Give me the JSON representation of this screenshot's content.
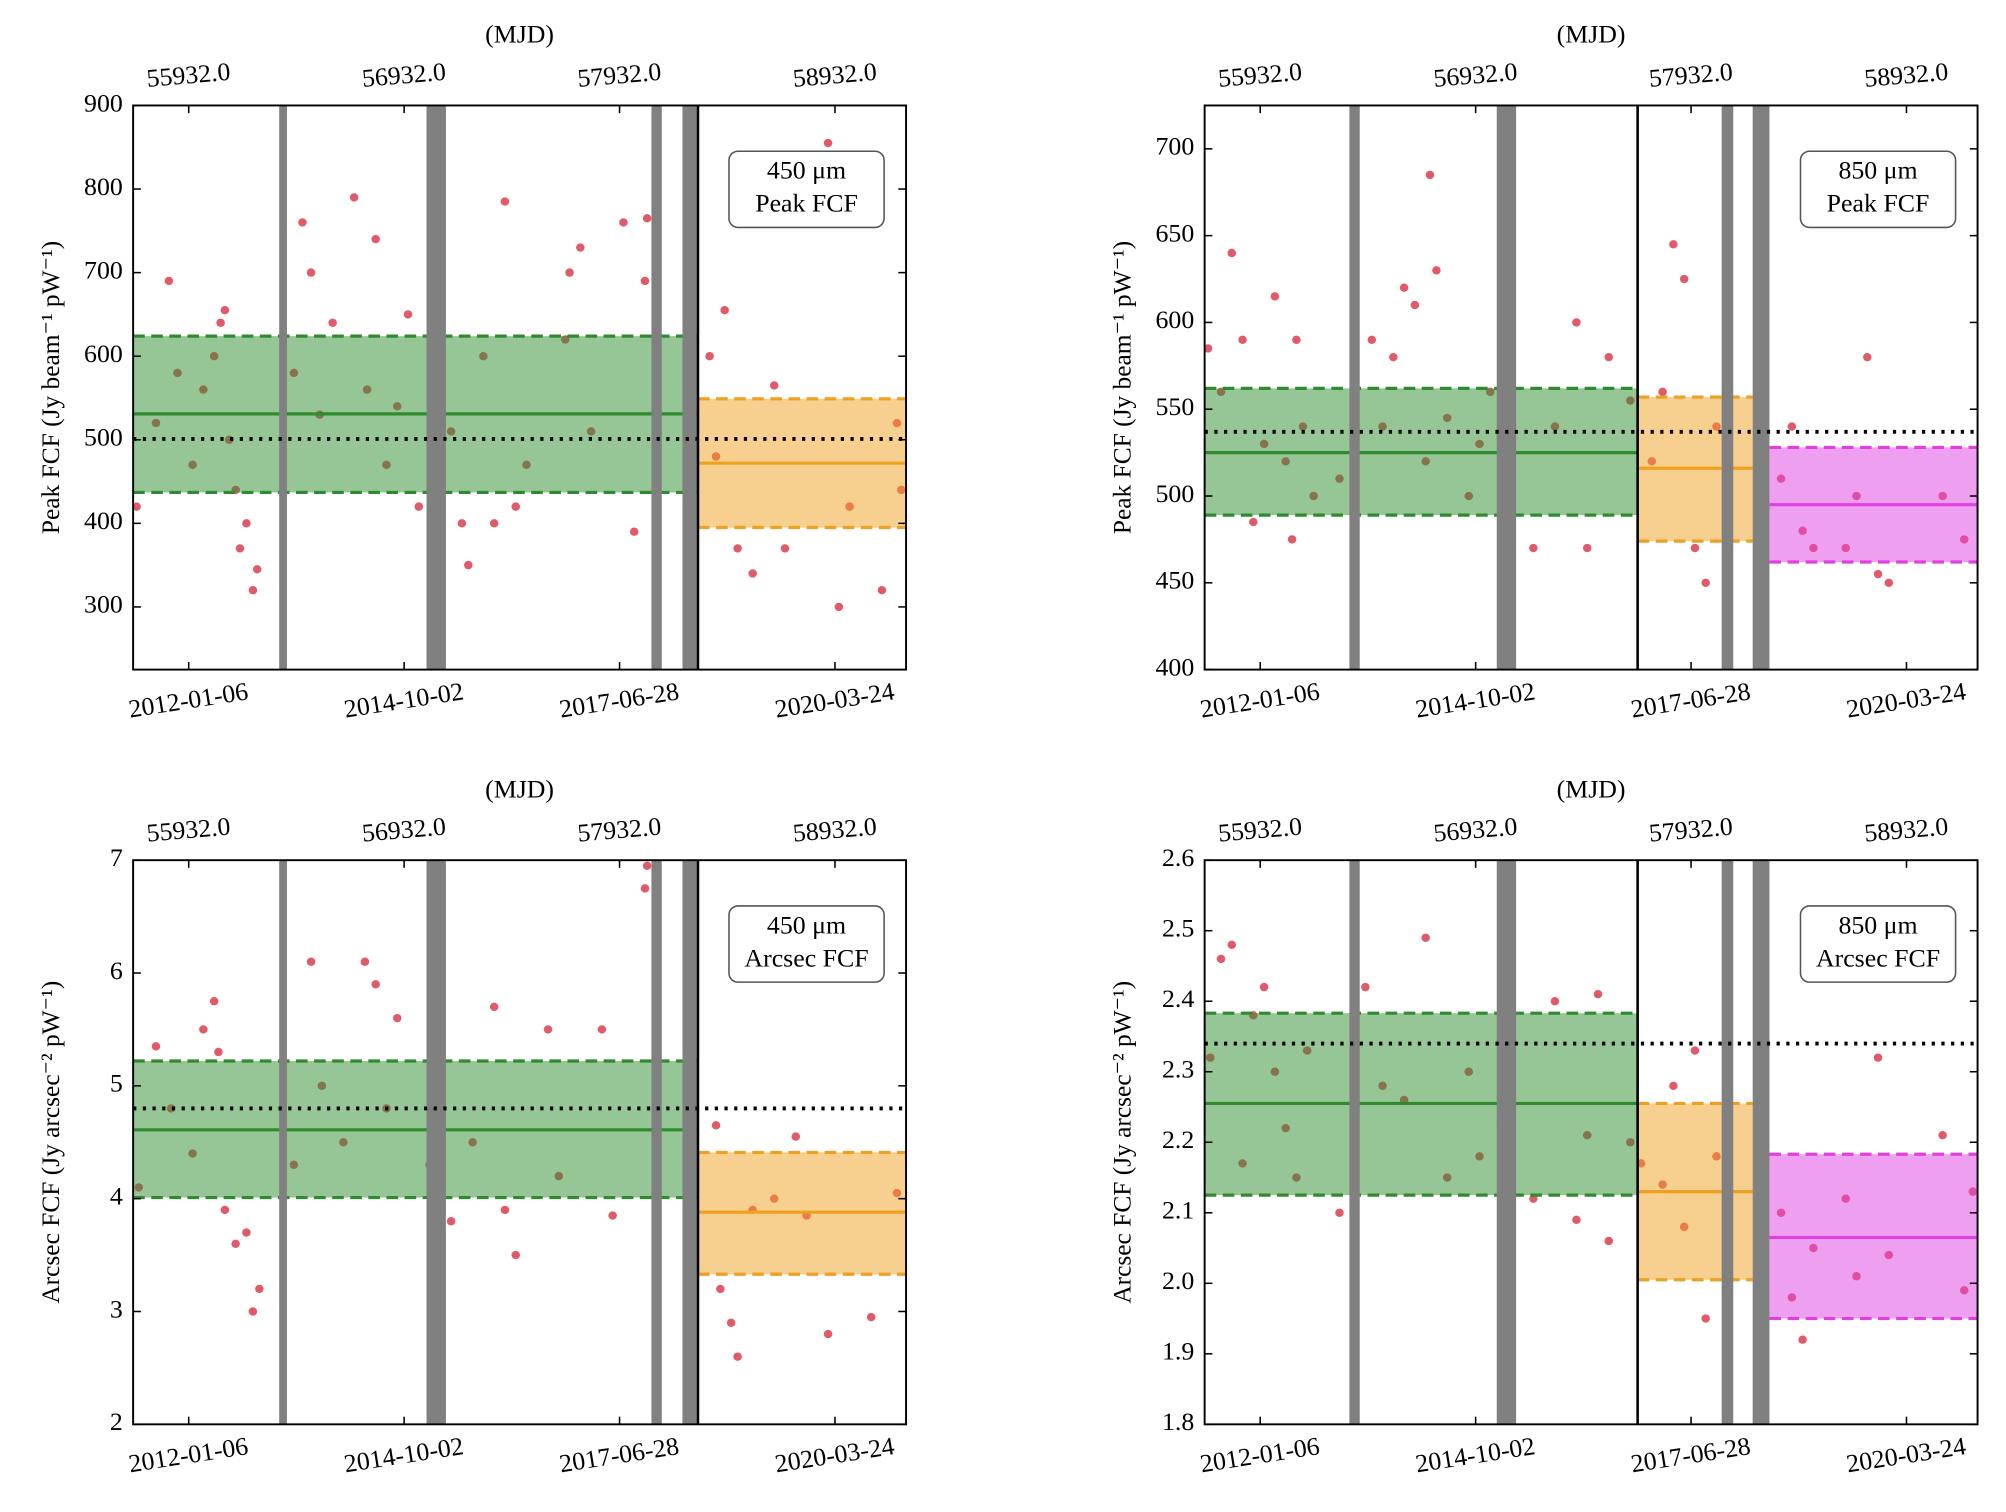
{
  "chart_data": [
    {
      "type": "scatter",
      "xlabel_top": "(MJD)",
      "ylabel": "Peak FCF (Jy beam⁻¹ pW⁻¹)",
      "annotation": [
        "450 μm",
        "Peak FCF"
      ],
      "xlim": [
        55674,
        59262
      ],
      "ylim": [
        225,
        900
      ],
      "xticks": [
        {
          "value": 55932,
          "label": "2012-01-06"
        },
        {
          "value": 56932,
          "label": "2014-10-02"
        },
        {
          "value": 57932,
          "label": "2017-06-28"
        },
        {
          "value": 58932,
          "label": "2020-03-24"
        }
      ],
      "x2ticks": [
        {
          "value": 55932,
          "label": "55932.0"
        },
        {
          "value": 56932,
          "label": "56932.0"
        },
        {
          "value": 57932,
          "label": "57932.0"
        },
        {
          "value": 58932,
          "label": "58932.0"
        }
      ],
      "yticks": [
        300,
        400,
        500,
        600,
        700,
        800,
        900
      ],
      "series": [
        {
          "color": "#e05a6a",
          "x": [
            55690,
            55780,
            55840,
            55880,
            55950,
            56000,
            56050,
            56080,
            56100,
            56120,
            56150,
            56170,
            56200,
            56230,
            56250,
            56420,
            56460,
            56500,
            56540,
            56600,
            56700,
            56760,
            56800,
            56850,
            56900,
            56950,
            57000,
            57150,
            57200,
            57230,
            57300,
            57350,
            57400,
            57450,
            57500,
            57680,
            57700,
            57750,
            57800,
            57950,
            58000,
            58050,
            58060,
            58350,
            58380,
            58420,
            58480,
            58550,
            58650,
            58700,
            58900,
            58950,
            59000,
            59150,
            59220,
            59240
          ],
          "values": [
            420,
            520,
            690,
            580,
            470,
            560,
            600,
            640,
            655,
            500,
            440,
            370,
            400,
            320,
            345,
            580,
            760,
            700,
            530,
            640,
            790,
            560,
            740,
            470,
            540,
            650,
            420,
            510,
            400,
            350,
            600,
            400,
            785,
            420,
            470,
            620,
            700,
            730,
            510,
            760,
            390,
            690,
            765,
            600,
            480,
            655,
            370,
            340,
            565,
            370,
            855,
            300,
            420,
            320,
            520,
            440
          ]
        }
      ],
      "regions": [
        {
          "color": "#2e8b2e",
          "x": [
            55674,
            58296
          ],
          "mean": 531,
          "lower": 437,
          "upper": 624
        },
        {
          "color": "#f0a020",
          "x": [
            58296,
            59262
          ],
          "mean": 472,
          "lower": 395,
          "upper": 549
        }
      ],
      "shutdowns": [
        [
          56352,
          56388
        ],
        [
          57036,
          57126
        ],
        [
          58080,
          58128
        ],
        [
          58224,
          58290
        ]
      ],
      "epoch_lines": [
        58296
      ],
      "reference_y": 501
    },
    {
      "type": "scatter",
      "xlabel_top": "(MJD)",
      "ylabel": "Peak FCF (Jy beam⁻¹ pW⁻¹)",
      "annotation": [
        "850 μm",
        "Peak FCF"
      ],
      "xlim": [
        55674,
        59262
      ],
      "ylim": [
        400,
        725
      ],
      "xticks": [
        {
          "value": 55932,
          "label": "2012-01-06"
        },
        {
          "value": 56932,
          "label": "2014-10-02"
        },
        {
          "value": 57932,
          "label": "2017-06-28"
        },
        {
          "value": 58932,
          "label": "2020-03-24"
        }
      ],
      "x2ticks": [
        {
          "value": 55932,
          "label": "55932.0"
        },
        {
          "value": 56932,
          "label": "56932.0"
        },
        {
          "value": 57932,
          "label": "57932.0"
        },
        {
          "value": 58932,
          "label": "58932.0"
        }
      ],
      "yticks": [
        400,
        450,
        500,
        550,
        600,
        650,
        700
      ],
      "series": [
        {
          "color": "#e05a6a",
          "x": [
            55690,
            55750,
            55800,
            55850,
            55900,
            55950,
            56000,
            56050,
            56080,
            56100,
            56130,
            56180,
            56300,
            56450,
            56500,
            56550,
            56600,
            56650,
            56700,
            56720,
            56750,
            56800,
            56900,
            56950,
            57000,
            57100,
            57200,
            57300,
            57400,
            57450,
            57550,
            57650,
            57750,
            57800,
            57850,
            57900,
            57950,
            58000,
            58050,
            58100,
            58350,
            58400,
            58450,
            58500,
            58650,
            58700,
            58750,
            58800,
            58850,
            59100,
            59200
          ],
          "values": [
            585,
            560,
            640,
            590,
            485,
            530,
            615,
            520,
            475,
            590,
            540,
            500,
            510,
            590,
            540,
            580,
            620,
            610,
            520,
            685,
            630,
            545,
            500,
            530,
            560,
            505,
            470,
            540,
            600,
            470,
            580,
            555,
            520,
            560,
            645,
            625,
            470,
            450,
            540,
            490,
            510,
            540,
            480,
            470,
            470,
            500,
            580,
            455,
            450,
            500,
            475
          ]
        }
      ],
      "regions": [
        {
          "color": "#2e8b2e",
          "x": [
            55674,
            57684
          ],
          "mean": 525,
          "lower": 489,
          "upper": 562
        },
        {
          "color": "#f0a020",
          "x": [
            57684,
            58218
          ],
          "mean": 516,
          "lower": 474,
          "upper": 557
        },
        {
          "color": "#e040e0",
          "x": [
            58296,
            59262
          ],
          "mean": 495,
          "lower": 462,
          "upper": 528
        }
      ],
      "shutdowns": [
        [
          56346,
          56394
        ],
        [
          57030,
          57120
        ],
        [
          58074,
          58128
        ],
        [
          58218,
          58296
        ]
      ],
      "epoch_lines": [
        57684
      ],
      "reference_y": 537
    },
    {
      "type": "scatter",
      "xlabel_top": "(MJD)",
      "ylabel": "Arcsec FCF (Jy arcsec⁻² pW⁻¹)",
      "annotation": [
        "450 μm",
        "Arcsec FCF"
      ],
      "xlim": [
        55674,
        59262
      ],
      "ylim": [
        2,
        7
      ],
      "xticks": [
        {
          "value": 55932,
          "label": "2012-01-06"
        },
        {
          "value": 56932,
          "label": "2014-10-02"
        },
        {
          "value": 57932,
          "label": "2017-06-28"
        },
        {
          "value": 58932,
          "label": "2020-03-24"
        }
      ],
      "x2ticks": [
        {
          "value": 55932,
          "label": "55932.0"
        },
        {
          "value": 56932,
          "label": "56932.0"
        },
        {
          "value": 57932,
          "label": "57932.0"
        },
        {
          "value": 58932,
          "label": "58932.0"
        }
      ],
      "yticks": [
        2,
        3,
        4,
        5,
        6,
        7
      ],
      "series": [
        {
          "color": "#e05a6a",
          "x": [
            55700,
            55780,
            55850,
            55950,
            56000,
            56050,
            56070,
            56100,
            56150,
            56200,
            56230,
            56260,
            56420,
            56500,
            56550,
            56650,
            56750,
            56800,
            56850,
            56900,
            57050,
            57100,
            57150,
            57250,
            57350,
            57400,
            57450,
            57600,
            57650,
            57850,
            57900,
            58050,
            58060,
            58100,
            58380,
            58400,
            58450,
            58480,
            58550,
            58650,
            58750,
            58800,
            58900,
            59100,
            59220
          ],
          "values": [
            4.1,
            5.35,
            4.8,
            4.4,
            5.5,
            5.75,
            5.3,
            3.9,
            3.6,
            3.7,
            3.0,
            3.2,
            4.3,
            6.1,
            5.0,
            4.5,
            6.1,
            5.9,
            4.8,
            5.6,
            4.3,
            6.1,
            3.8,
            4.5,
            5.7,
            3.9,
            3.5,
            5.5,
            4.2,
            5.5,
            3.85,
            6.75,
            6.95,
            4.6,
            4.65,
            3.2,
            2.9,
            2.6,
            3.9,
            4.0,
            4.55,
            3.85,
            2.8,
            2.95,
            4.05
          ]
        }
      ],
      "regions": [
        {
          "color": "#2e8b2e",
          "x": [
            55674,
            58296
          ],
          "mean": 4.61,
          "lower": 4.01,
          "upper": 5.22
        },
        {
          "color": "#f0a020",
          "x": [
            58296,
            59262
          ],
          "mean": 3.88,
          "lower": 3.33,
          "upper": 4.41
        }
      ],
      "shutdowns": [
        [
          56352,
          56388
        ],
        [
          57036,
          57126
        ],
        [
          58080,
          58128
        ],
        [
          58224,
          58290
        ]
      ],
      "epoch_lines": [
        58296
      ],
      "reference_y": 4.8
    },
    {
      "type": "scatter",
      "xlabel_top": "(MJD)",
      "ylabel": "Arcsec FCF (Jy arcsec⁻² pW⁻¹)",
      "annotation": [
        "850 μm",
        "Arcsec FCF"
      ],
      "xlim": [
        55674,
        59262
      ],
      "ylim": [
        1.8,
        2.6
      ],
      "xticks": [
        {
          "value": 55932,
          "label": "2012-01-06"
        },
        {
          "value": 56932,
          "label": "2014-10-02"
        },
        {
          "value": 57932,
          "label": "2017-06-28"
        },
        {
          "value": 58932,
          "label": "2020-03-24"
        }
      ],
      "x2ticks": [
        {
          "value": 55932,
          "label": "55932.0"
        },
        {
          "value": 56932,
          "label": "56932.0"
        },
        {
          "value": 57932,
          "label": "57932.0"
        },
        {
          "value": 58932,
          "label": "58932.0"
        }
      ],
      "yticks": [
        1.8,
        1.9,
        {
          "value": 2,
          "label": "2.0"
        },
        2.1,
        2.2,
        2.3,
        2.4,
        2.5,
        2.6
      ],
      "series": [
        {
          "color": "#e05a6a",
          "x": [
            55700,
            55750,
            55800,
            55850,
            55900,
            55950,
            56000,
            56050,
            56100,
            56150,
            56300,
            56420,
            56500,
            56600,
            56700,
            56800,
            56900,
            56950,
            57050,
            57200,
            57300,
            57400,
            57450,
            57500,
            57550,
            57650,
            57700,
            57800,
            57850,
            57900,
            57950,
            58000,
            58050,
            58100,
            58350,
            58400,
            58450,
            58500,
            58650,
            58700,
            58800,
            58850,
            59100,
            59200,
            59240
          ],
          "values": [
            2.32,
            2.46,
            2.48,
            2.17,
            2.38,
            2.42,
            2.3,
            2.22,
            2.15,
            2.33,
            2.1,
            2.42,
            2.28,
            2.26,
            2.49,
            2.15,
            2.3,
            2.18,
            2.23,
            2.12,
            2.4,
            2.09,
            2.21,
            2.41,
            2.06,
            2.2,
            2.17,
            2.14,
            2.28,
            2.08,
            2.33,
            1.95,
            2.18,
            2.07,
            2.1,
            1.98,
            1.92,
            2.05,
            2.12,
            2.01,
            2.32,
            2.04,
            2.21,
            1.99,
            2.13
          ]
        }
      ],
      "regions": [
        {
          "color": "#2e8b2e",
          "x": [
            55674,
            57684
          ],
          "mean": 2.255,
          "lower": 2.125,
          "upper": 2.383
        },
        {
          "color": "#f0a020",
          "x": [
            57684,
            58218
          ],
          "mean": 2.13,
          "lower": 2.005,
          "upper": 2.255
        },
        {
          "color": "#e040e0",
          "x": [
            58296,
            59262
          ],
          "mean": 2.065,
          "lower": 1.95,
          "upper": 2.183
        }
      ],
      "shutdowns": [
        [
          56346,
          56394
        ],
        [
          57030,
          57120
        ],
        [
          58074,
          58128
        ],
        [
          58218,
          58296
        ]
      ],
      "epoch_lines": [
        57684
      ],
      "reference_y": 2.34
    }
  ]
}
